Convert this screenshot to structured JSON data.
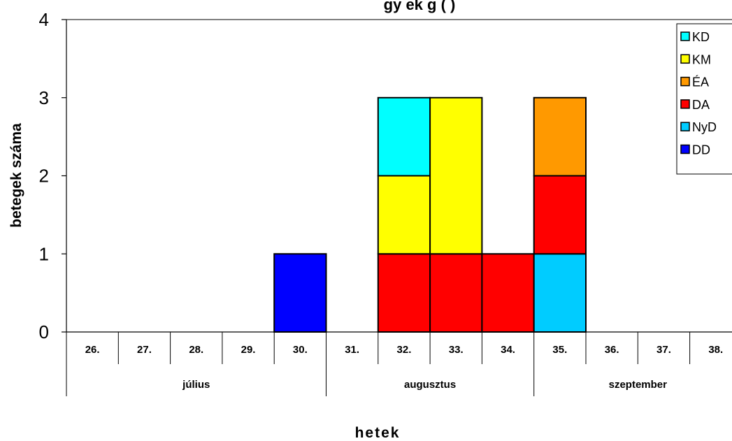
{
  "chart_data": {
    "type": "bar",
    "stacked": true,
    "title": "gy    ek    g       (      )",
    "xlabel": "hetek",
    "ylabel": "betegek száma",
    "ylim": [
      0,
      4
    ],
    "yticks": [
      "0",
      "1",
      "2",
      "3",
      "4"
    ],
    "categories": [
      "26.",
      "27.",
      "28.",
      "29.",
      "30.",
      "31.",
      "32.",
      "33.",
      "34.",
      "35.",
      "36.",
      "37.",
      "38."
    ],
    "months": [
      {
        "label": "július",
        "from": 0,
        "to": 4
      },
      {
        "label": "augusztus",
        "from": 5,
        "to": 8
      },
      {
        "label": "szeptember",
        "from": 9,
        "to": 12
      }
    ],
    "stack_order": [
      "DD",
      "NyD",
      "DA",
      "ÉA",
      "KM",
      "KD"
    ],
    "series": [
      {
        "name": "KD",
        "color": "#00FFFF",
        "values": [
          0,
          0,
          0,
          0,
          0,
          0,
          1,
          0,
          0,
          0,
          0,
          0,
          0
        ]
      },
      {
        "name": "KM",
        "color": "#FFFF00",
        "values": [
          0,
          0,
          0,
          0,
          0,
          0,
          1,
          2,
          0,
          0,
          0,
          0,
          0
        ]
      },
      {
        "name": "ÉA",
        "color": "#FF9900",
        "values": [
          0,
          0,
          0,
          0,
          0,
          0,
          0,
          0,
          0,
          1,
          0,
          0,
          0
        ]
      },
      {
        "name": "DA",
        "color": "#FF0000",
        "values": [
          0,
          0,
          0,
          0,
          0,
          0,
          1,
          1,
          1,
          1,
          0,
          0,
          0
        ]
      },
      {
        "name": "NyD",
        "color": "#00CCFF",
        "values": [
          0,
          0,
          0,
          0,
          0,
          0,
          0,
          0,
          0,
          1,
          0,
          0,
          0
        ]
      },
      {
        "name": "DD",
        "color": "#0000FF",
        "values": [
          0,
          0,
          0,
          0,
          1,
          0,
          0,
          0,
          0,
          0,
          0,
          0,
          0
        ]
      }
    ],
    "grid": false,
    "legend_position": "top-right"
  }
}
